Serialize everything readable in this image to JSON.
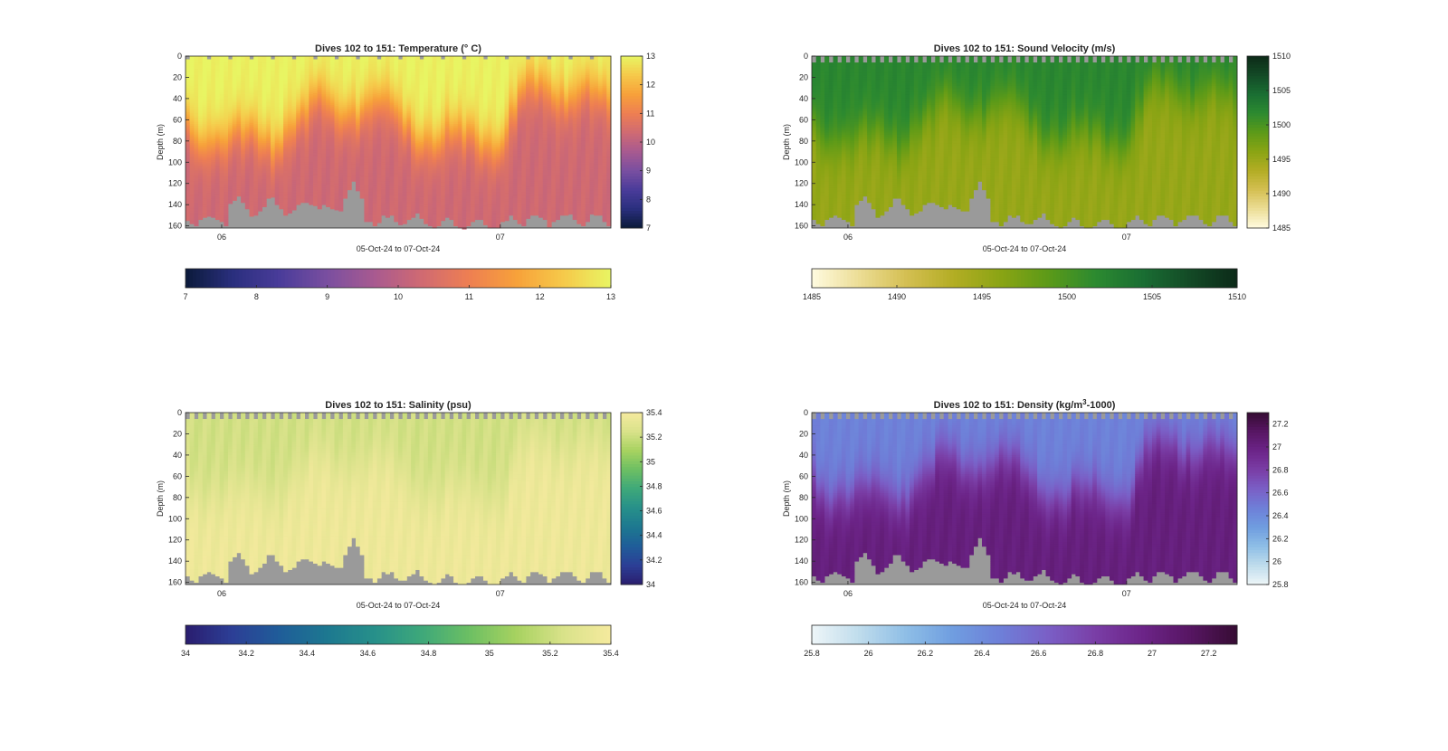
{
  "figure": {
    "background": "#ffffff",
    "nodata_color": "#9a9a9a"
  },
  "chart_data": [
    {
      "id": "temperature",
      "type": "heatmap",
      "title": "Dives 102 to 151: Temperature (° C)",
      "xlabel": "05-Oct-24 to 07-Oct-24",
      "ylabel": "Depth (m)",
      "x_ticks": [
        "06",
        "07"
      ],
      "y_ticks": [
        0,
        20,
        40,
        60,
        80,
        100,
        120,
        140,
        160
      ],
      "ylim": [
        0,
        162
      ],
      "clim": [
        7,
        13
      ],
      "cbar_ticks": [
        7,
        8,
        9,
        10,
        11,
        12,
        13
      ],
      "hbar_ticks": [
        7,
        8,
        9,
        10,
        11,
        12,
        13
      ],
      "colormap": [
        "#0b1a3a",
        "#2a2f7e",
        "#4a3c9a",
        "#7a4fa0",
        "#a85a90",
        "#d06a72",
        "#ee7f52",
        "#f7a13a",
        "#f6c94a",
        "#e8f563"
      ],
      "grid": false,
      "profile": {
        "surface": 12.95,
        "deep": 10.3
      }
    },
    {
      "id": "sound_velocity",
      "type": "heatmap",
      "title": "Dives 102 to 151: Sound Velocity (m/s)",
      "xlabel": "05-Oct-24 to 07-Oct-24",
      "ylabel": "Depth (m)",
      "x_ticks": [
        "06",
        "07"
      ],
      "y_ticks": [
        0,
        20,
        40,
        60,
        80,
        100,
        120,
        140,
        160
      ],
      "ylim": [
        0,
        162
      ],
      "clim": [
        1485,
        1510
      ],
      "cbar_ticks": [
        1485,
        1490,
        1495,
        1500,
        1505,
        1510
      ],
      "hbar_ticks": [
        1485,
        1490,
        1495,
        1500,
        1505,
        1510
      ],
      "colormap": [
        "#fffbe0",
        "#ecdd95",
        "#d4bf52",
        "#b3ad24",
        "#8aa414",
        "#5c9a18",
        "#2c8a30",
        "#1a6e33",
        "#134a26",
        "#0c2a18"
      ],
      "grid": false,
      "profile": {
        "surface": 1502.0,
        "deep": 1495.3
      }
    },
    {
      "id": "salinity",
      "type": "heatmap",
      "title": "Dives 102 to 151: Salinity (psu)",
      "xlabel": "05-Oct-24 to 07-Oct-24",
      "ylabel": "Depth (m)",
      "x_ticks": [
        "06",
        "07"
      ],
      "y_ticks": [
        0,
        20,
        40,
        60,
        80,
        100,
        120,
        140,
        160
      ],
      "ylim": [
        0,
        162
      ],
      "clim": [
        34,
        35.4
      ],
      "cbar_ticks": [
        34,
        34.2,
        34.4,
        34.6,
        34.8,
        35,
        35.2,
        35.4
      ],
      "hbar_ticks": [
        34,
        34.2,
        34.4,
        34.6,
        34.8,
        35,
        35.2,
        35.4
      ],
      "colormap": [
        "#2a1d6e",
        "#2c3f96",
        "#1f5d99",
        "#1d7890",
        "#27908a",
        "#3ea87a",
        "#6cbf63",
        "#a7d260",
        "#d9e28a",
        "#f5ea9e"
      ],
      "grid": false,
      "profile": {
        "surface": 35.22,
        "deep": 35.36
      }
    },
    {
      "id": "density",
      "type": "heatmap",
      "title": "Dives 102 to 151: Density (kg/m",
      "title_sup": "3",
      "title_end": "-1000)",
      "xlabel": "05-Oct-24 to 07-Oct-24",
      "ylabel": "Depth (m)",
      "x_ticks": [
        "06",
        "07"
      ],
      "y_ticks": [
        0,
        20,
        40,
        60,
        80,
        100,
        120,
        140,
        160
      ],
      "ylim": [
        0,
        162
      ],
      "clim": [
        25.8,
        27.3
      ],
      "cbar_ticks": [
        25.8,
        26,
        26.2,
        26.4,
        26.6,
        26.8,
        27,
        27.2
      ],
      "hbar_ticks": [
        25.8,
        26,
        26.2,
        26.4,
        26.6,
        26.8,
        27,
        27.2
      ],
      "colormap": [
        "#eef6f8",
        "#bfdcec",
        "#8ebee6",
        "#6f9de0",
        "#6e7fd8",
        "#7a5fc6",
        "#7a3ea6",
        "#6c2488",
        "#571663",
        "#360c33"
      ],
      "grid": false,
      "profile": {
        "surface": 26.45,
        "deep": 27.02
      }
    }
  ]
}
